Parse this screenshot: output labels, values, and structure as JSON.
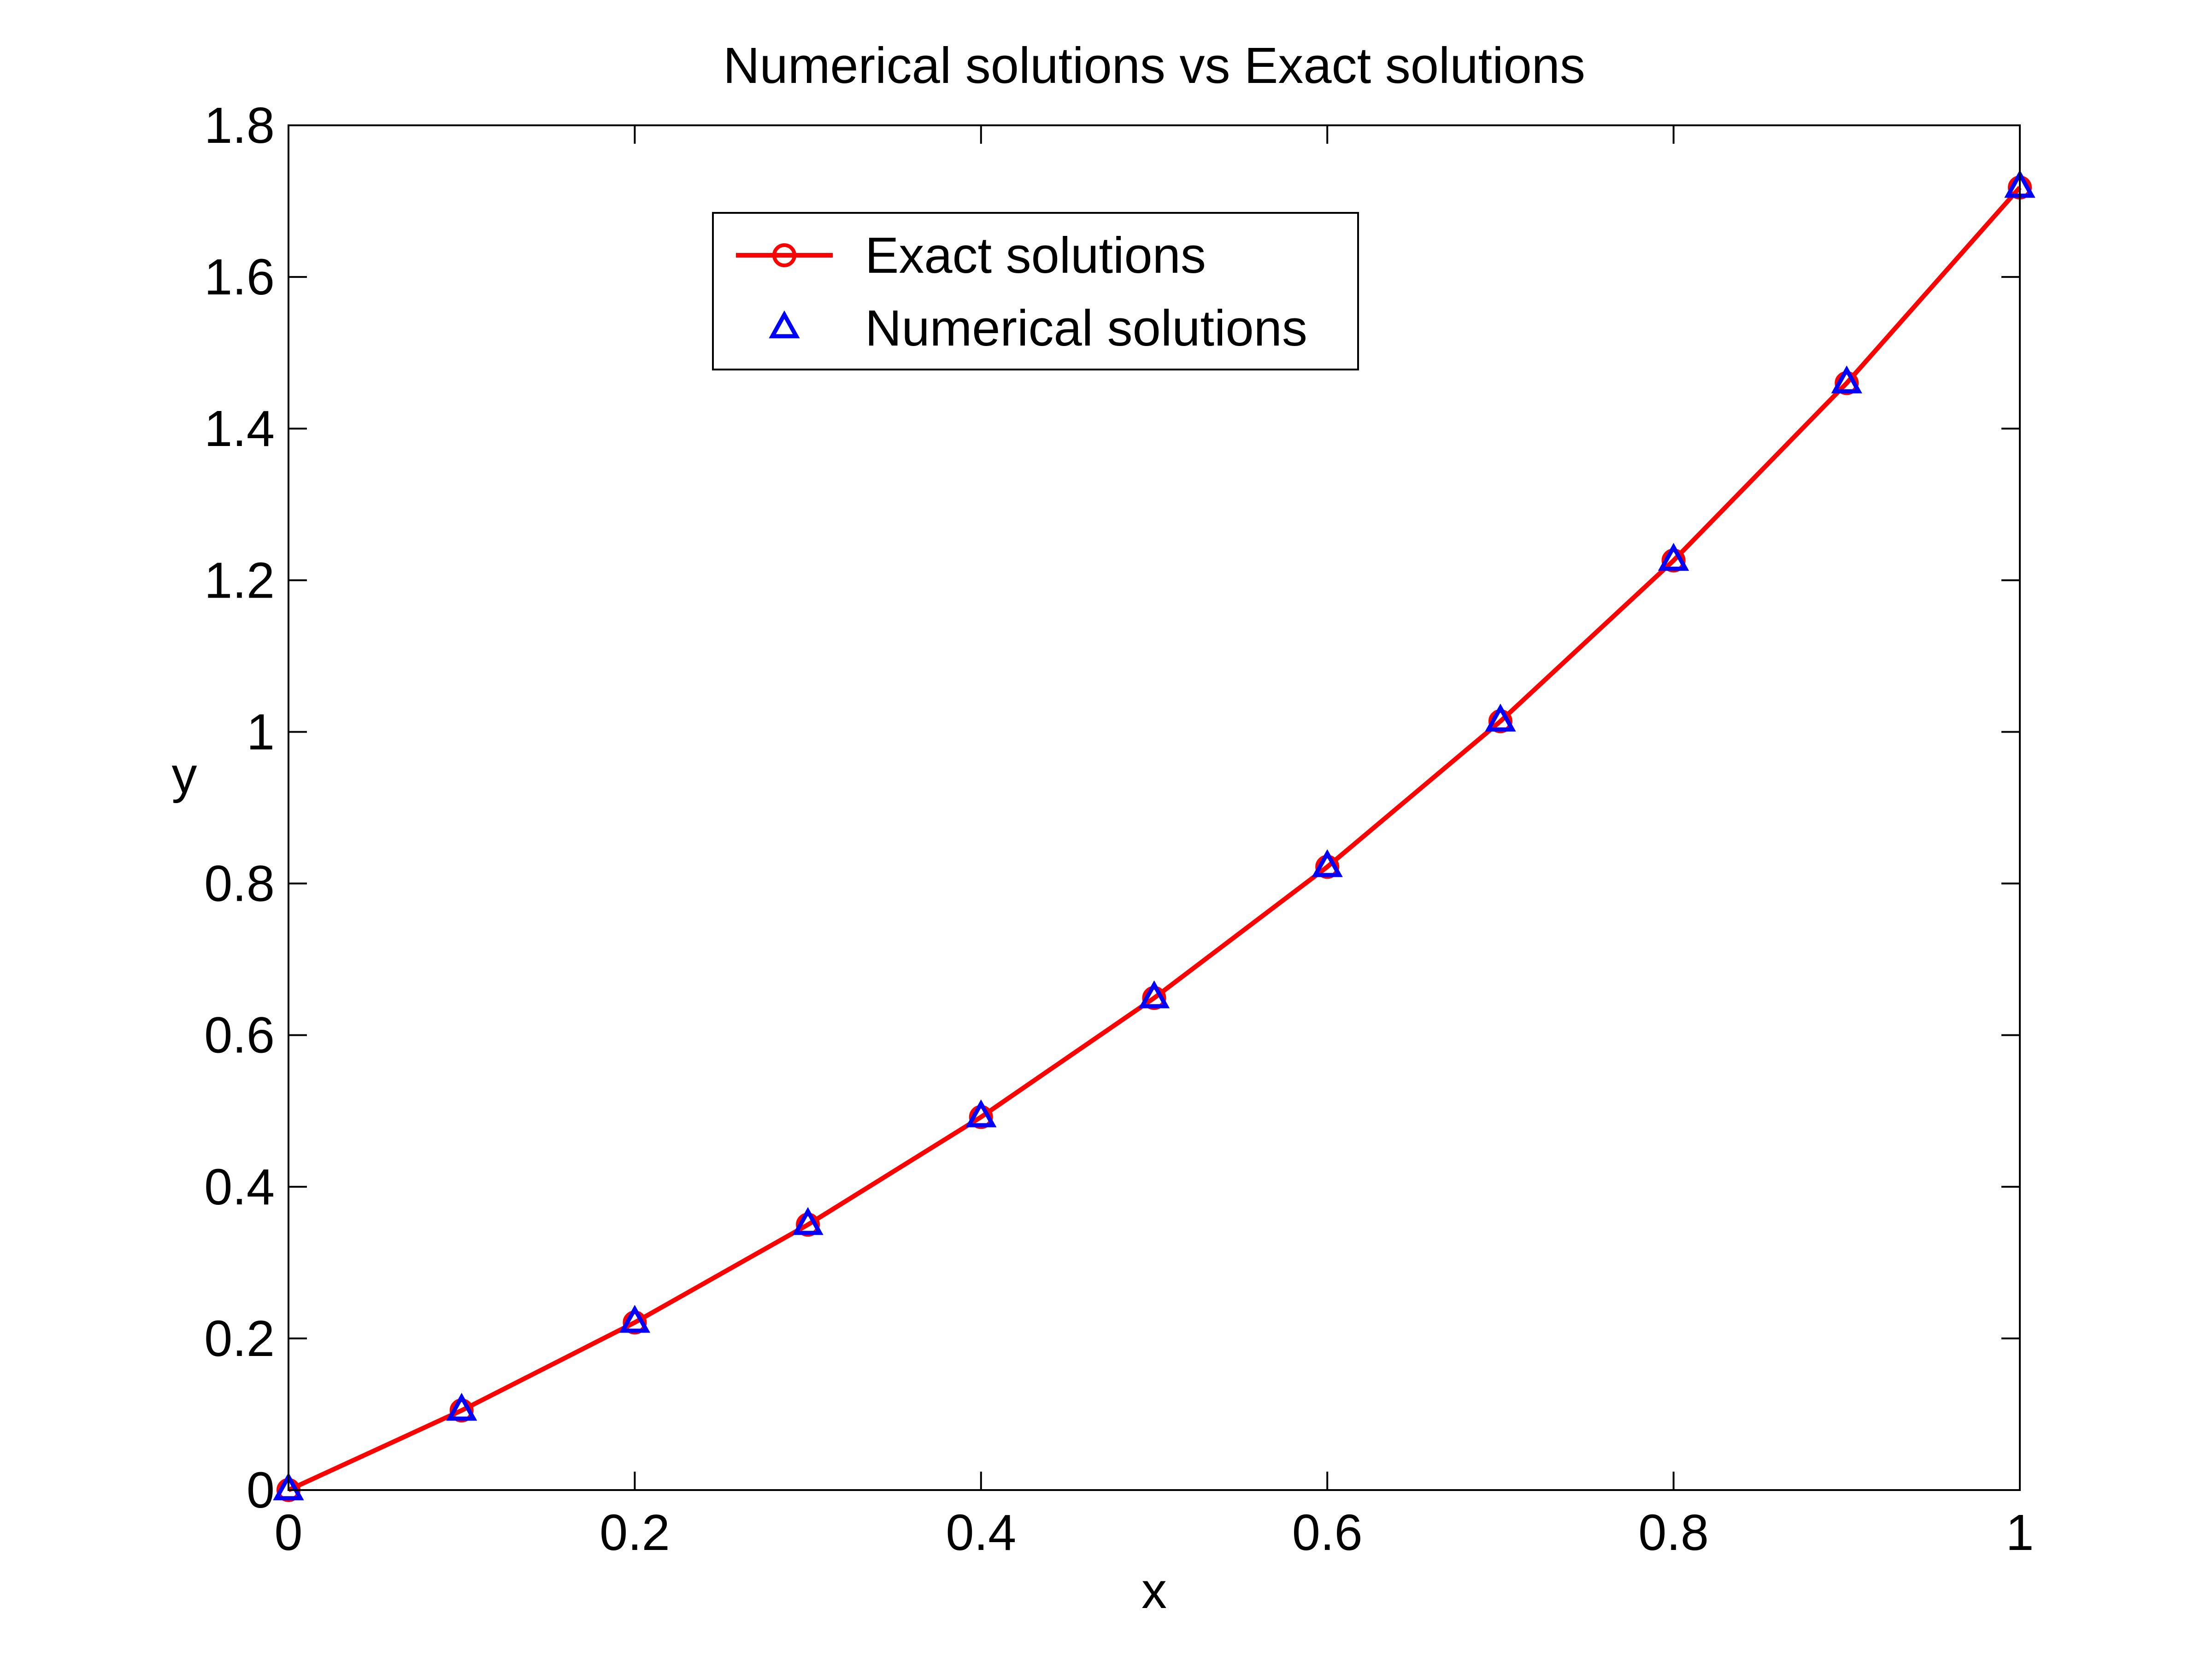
{
  "colors": {
    "exact": "#ff0000",
    "numerical": "#0000ff",
    "axis": "#000000",
    "background": "#ffffff"
  },
  "chart_data": {
    "type": "line",
    "title": "Numerical solutions vs Exact solutions",
    "xlabel": "x",
    "ylabel": "y",
    "xlim": [
      0,
      1
    ],
    "ylim": [
      0,
      1.8
    ],
    "xticks": [
      0,
      0.2,
      0.4,
      0.6,
      0.8,
      1
    ],
    "xtick_labels": [
      "0",
      "0.2",
      "0.4",
      "0.6",
      "0.8",
      "1"
    ],
    "yticks": [
      0,
      0.2,
      0.4,
      0.6,
      0.8,
      1,
      1.2,
      1.4,
      1.6,
      1.8
    ],
    "ytick_labels": [
      "0",
      "0.2",
      "0.4",
      "0.6",
      "0.8",
      "1",
      "1.2",
      "1.4",
      "1.6",
      "1.8"
    ],
    "grid": false,
    "legend_position": "top-center",
    "x": [
      0,
      0.1,
      0.2,
      0.3,
      0.4,
      0.5,
      0.6,
      0.7,
      0.8,
      0.9,
      1.0
    ],
    "series": [
      {
        "name": "Exact solutions",
        "style": "line-circle",
        "values": [
          0,
          0.105,
          0.221,
          0.35,
          0.492,
          0.649,
          0.822,
          1.014,
          1.226,
          1.46,
          1.718
        ]
      },
      {
        "name": "Numerical solutions",
        "style": "triangle",
        "values": [
          0,
          0.105,
          0.221,
          0.35,
          0.492,
          0.649,
          0.822,
          1.014,
          1.226,
          1.46,
          1.718
        ]
      }
    ]
  }
}
